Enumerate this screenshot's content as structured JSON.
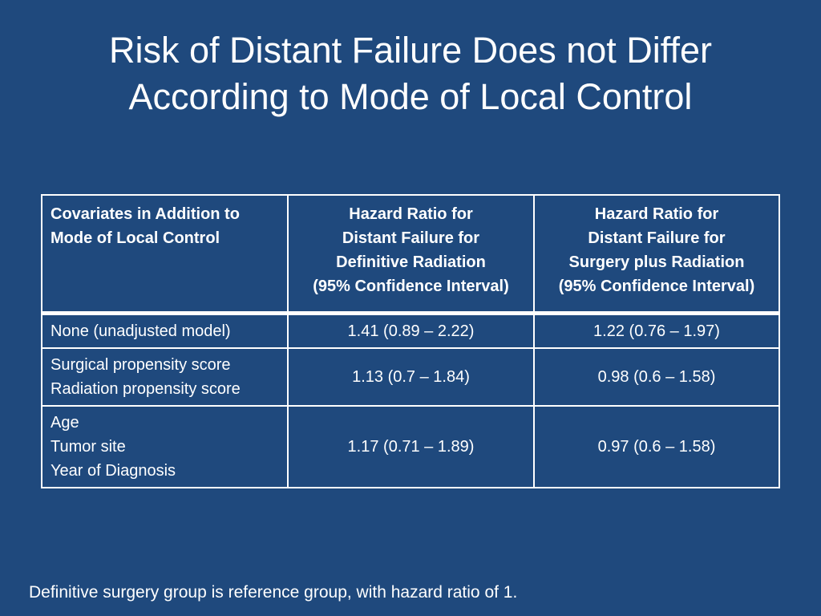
{
  "title": {
    "lines": [
      "Risk of Distant Failure Does not Differ",
      "According to Mode of Local Control"
    ]
  },
  "table": {
    "headers": [
      [
        "Covariates in Addition to",
        "Mode of Local Control"
      ],
      [
        "Hazard Ratio for",
        "Distant Failure for",
        "Definitive Radiation",
        "(95% Confidence Interval)"
      ],
      [
        "Hazard Ratio for",
        "Distant Failure for",
        "Surgery plus Radiation",
        "(95% Confidence Interval)"
      ]
    ],
    "rows": [
      {
        "covariates": [
          "None (unadjusted model)"
        ],
        "definitive_radiation": "1.41 (0.89 – 2.22)",
        "surgery_plus_radiation": "1.22 (0.76 – 1.97)"
      },
      {
        "covariates": [
          "Surgical propensity score",
          "Radiation propensity score"
        ],
        "definitive_radiation": "1.13 (0.7 – 1.84)",
        "surgery_plus_radiation": "0.98 (0.6 – 1.58)"
      },
      {
        "covariates": [
          "Age",
          "Tumor site",
          "Year of Diagnosis"
        ],
        "definitive_radiation": "1.17 (0.71 – 1.89)",
        "surgery_plus_radiation": "0.97 (0.6 – 1.58)"
      }
    ]
  },
  "footnote": "Definitive surgery group is reference group, with hazard ratio of 1."
}
